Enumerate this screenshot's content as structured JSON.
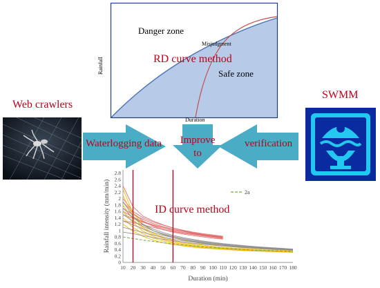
{
  "rd": {
    "title": "RD curve method",
    "danger_zone": "Danger zone",
    "safe_zone": "Safe zone",
    "misjudgment": "Misjudgment",
    "ylabel": "Rainfall",
    "xlabel": "Duration",
    "colors": {
      "fill": "#b7cbe8",
      "curve": "#4a74b6",
      "boundary": "#c0504d",
      "frame": "#1f3f7a"
    }
  },
  "web": {
    "title": "Web crawlers",
    "arrow_label": "Waterlogging data"
  },
  "improve": {
    "label": "Improve to"
  },
  "swmm": {
    "title": "SWMM",
    "arrow_label": "verification",
    "colors": {
      "bg": "#0a2aa0",
      "icon": "#22c8f0"
    }
  },
  "arrow_color": "#4bacc6",
  "chart_data": {
    "type": "line",
    "title": "ID curve method",
    "xlabel": "Duration (min)",
    "ylabel": "Rainfall intensity (mm/min)",
    "x": [
      10,
      20,
      30,
      40,
      50,
      60,
      70,
      80,
      90,
      100,
      110,
      120,
      130,
      140,
      150,
      160,
      170,
      180
    ],
    "x_tick_labels": [
      "10",
      "20",
      "30",
      "40",
      "50",
      "60",
      "70",
      "80",
      "90",
      "100",
      "110",
      "120",
      "130",
      "140",
      "150",
      "160",
      "170",
      "180"
    ],
    "y_ticks": [
      0,
      0.2,
      0.4,
      0.6,
      0.8,
      1,
      1.2,
      1.4,
      1.6,
      1.8,
      2,
      2.2,
      2.4,
      2.6,
      2.8
    ],
    "y_tick_labels": [
      "0",
      "0.2",
      "0.4",
      "0.6",
      "0.8",
      "1",
      "1.2",
      "1.4",
      "1.6",
      "1.8",
      "2",
      "2.2",
      "2.4",
      "2.6",
      "2.8"
    ],
    "xlim": [
      10,
      180
    ],
    "ylim": [
      0,
      2.9
    ],
    "vlines": [
      20,
      60
    ],
    "legend": {
      "label": "2a",
      "position": "top-right"
    },
    "series": [
      {
        "group": "red",
        "values": [
          2.4,
          1.75,
          1.45,
          1.3,
          1.18,
          1.08,
          1.0,
          0.93,
          0.88,
          0.84,
          0.8,
          null,
          null,
          null,
          null,
          null,
          null,
          null
        ]
      },
      {
        "group": "red",
        "values": [
          2.0,
          1.6,
          1.4,
          1.27,
          1.17,
          1.08,
          1.01,
          0.95,
          0.9,
          0.86,
          0.82,
          null,
          null,
          null,
          null,
          null,
          null,
          null
        ]
      },
      {
        "group": "red",
        "values": [
          1.7,
          1.5,
          1.35,
          1.22,
          1.12,
          1.04,
          0.98,
          0.92,
          0.87,
          0.83,
          0.79,
          null,
          null,
          null,
          null,
          null,
          null,
          null
        ]
      },
      {
        "group": "red",
        "values": [
          1.5,
          1.38,
          1.26,
          1.16,
          1.07,
          1.0,
          0.94,
          0.89,
          0.85,
          0.81,
          0.77,
          null,
          null,
          null,
          null,
          null,
          null,
          null
        ]
      },
      {
        "group": "red",
        "values": [
          1.9,
          1.55,
          1.3,
          1.14,
          1.03,
          0.95,
          0.89,
          0.84,
          0.8,
          0.76,
          0.73,
          null,
          null,
          null,
          null,
          null,
          null,
          null
        ]
      },
      {
        "group": "red",
        "values": [
          1.6,
          1.42,
          1.28,
          1.18,
          1.1,
          1.03,
          0.97,
          0.91,
          0.86,
          0.82,
          0.78,
          null,
          null,
          null,
          null,
          null,
          null,
          null
        ]
      },
      {
        "group": "red",
        "values": [
          1.3,
          1.25,
          1.18,
          1.1,
          1.03,
          0.97,
          0.92,
          0.87,
          0.83,
          0.79,
          0.75,
          null,
          null,
          null,
          null,
          null,
          null,
          null
        ]
      },
      {
        "group": "yellow",
        "values": [
          2.3,
          1.55,
          1.2,
          1.0,
          0.88,
          0.78,
          0.7,
          0.64,
          0.59,
          0.55,
          0.52,
          0.49,
          0.46,
          0.44,
          0.42,
          0.4,
          0.38,
          0.36
        ]
      },
      {
        "group": "yellow",
        "values": [
          2.1,
          1.45,
          1.1,
          0.92,
          0.8,
          0.7,
          0.63,
          0.58,
          0.54,
          0.5,
          0.47,
          0.45,
          0.43,
          0.41,
          0.39,
          0.37,
          0.35,
          0.34
        ]
      },
      {
        "group": "yellow",
        "values": [
          1.8,
          1.35,
          1.05,
          0.88,
          0.76,
          0.67,
          0.6,
          0.55,
          0.51,
          0.48,
          0.45,
          0.43,
          0.41,
          0.39,
          0.37,
          0.36,
          0.34,
          0.33
        ]
      },
      {
        "group": "yellow",
        "values": [
          1.6,
          1.25,
          0.98,
          0.82,
          0.71,
          0.63,
          0.57,
          0.52,
          0.48,
          0.45,
          0.43,
          0.41,
          0.39,
          0.37,
          0.36,
          0.35,
          0.34,
          0.32
        ]
      },
      {
        "group": "yellow",
        "values": [
          1.4,
          1.1,
          0.9,
          0.77,
          0.67,
          0.6,
          0.54,
          0.5,
          0.47,
          0.44,
          0.42,
          0.4,
          0.38,
          0.37,
          0.35,
          0.34,
          0.33,
          0.32
        ]
      },
      {
        "group": "yellow",
        "values": [
          1.2,
          0.98,
          0.82,
          0.7,
          0.62,
          0.56,
          0.52,
          0.48,
          0.45,
          0.43,
          0.41,
          0.39,
          0.37,
          0.36,
          0.35,
          0.34,
          0.33,
          0.32
        ]
      },
      {
        "group": "gray",
        "values": [
          1.7,
          1.4,
          1.2,
          1.05,
          0.94,
          0.85,
          0.78,
          0.72,
          0.67,
          0.63,
          0.59,
          0.56,
          0.53,
          0.5,
          0.48,
          0.46,
          0.44,
          0.42
        ]
      },
      {
        "group": "gray",
        "values": [
          1.5,
          1.3,
          1.13,
          1.0,
          0.9,
          0.82,
          0.75,
          0.7,
          0.65,
          0.61,
          0.58,
          0.55,
          0.52,
          0.5,
          0.47,
          0.45,
          0.43,
          0.41
        ]
      },
      {
        "group": "gray",
        "values": [
          1.3,
          1.18,
          1.05,
          0.94,
          0.85,
          0.78,
          0.72,
          0.67,
          0.63,
          0.59,
          0.56,
          0.53,
          0.5,
          0.48,
          0.46,
          0.44,
          0.42,
          0.4
        ]
      },
      {
        "group": "gray",
        "values": [
          1.1,
          1.02,
          0.94,
          0.86,
          0.79,
          0.73,
          0.68,
          0.64,
          0.6,
          0.57,
          0.54,
          0.51,
          0.49,
          0.47,
          0.45,
          0.43,
          0.41,
          0.39
        ]
      },
      {
        "group": "gray",
        "values": [
          0.95,
          0.9,
          0.84,
          0.78,
          0.73,
          0.68,
          0.64,
          0.6,
          0.57,
          0.54,
          0.51,
          0.49,
          0.47,
          0.45,
          0.43,
          0.41,
          0.4,
          0.38
        ]
      },
      {
        "group": "gray",
        "values": [
          1.9,
          1.45,
          1.18,
          1.0,
          0.88,
          0.79,
          0.72,
          0.66,
          0.61,
          0.57,
          0.54,
          0.51,
          0.48,
          0.46,
          0.44,
          0.42,
          0.4,
          0.39
        ]
      },
      {
        "group": "legend-2a",
        "values": [
          0.8,
          0.75,
          0.7,
          0.66,
          0.62,
          0.58,
          0.55,
          0.52,
          0.49,
          0.47,
          0.45,
          0.43,
          0.41,
          0.39,
          0.38,
          0.37,
          0.36,
          0.34
        ]
      }
    ],
    "group_colors": {
      "red": "#e06666",
      "yellow": "#f2b400",
      "gray": "#8c8c8c",
      "legend-2a": "#70ad47",
      "vline": "#c0001a"
    }
  }
}
